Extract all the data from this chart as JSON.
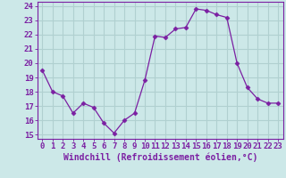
{
  "x": [
    0,
    1,
    2,
    3,
    4,
    5,
    6,
    7,
    8,
    9,
    10,
    11,
    12,
    13,
    14,
    15,
    16,
    17,
    18,
    19,
    20,
    21,
    22,
    23
  ],
  "y": [
    19.5,
    18.0,
    17.7,
    16.5,
    17.2,
    16.9,
    15.8,
    15.1,
    16.0,
    16.5,
    18.8,
    21.9,
    21.8,
    22.4,
    22.5,
    23.8,
    23.7,
    23.4,
    23.2,
    20.0,
    18.3,
    17.5,
    17.2,
    17.2
  ],
  "line_color": "#7b1fa2",
  "marker": "D",
  "marker_size": 2.5,
  "bg_color": "#cce8e8",
  "grid_color": "#b0d0d0",
  "xlabel": "Windchill (Refroidissement éolien,°C)",
  "ylabel_ticks": [
    15,
    16,
    17,
    18,
    19,
    20,
    21,
    22,
    23,
    24
  ],
  "xlim": [
    -0.5,
    23.5
  ],
  "ylim": [
    14.7,
    24.3
  ],
  "xlabel_color": "#7b1fa2",
  "tick_color": "#7b1fa2",
  "tick_label_color": "#7b1fa2",
  "label_fontsize": 7.0,
  "tick_fontsize": 6.5,
  "spine_color": "#7b1fa2"
}
